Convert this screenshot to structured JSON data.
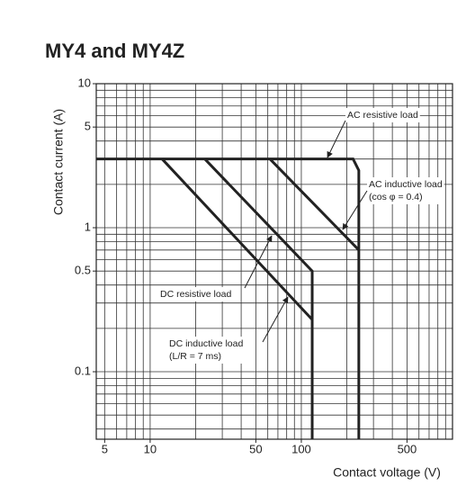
{
  "chart_data": {
    "type": "line",
    "title": "MY4 and MY4Z",
    "x_label": "Contact voltage (V)",
    "y_label": "Contact current (A)",
    "log_x": true,
    "log_y": true,
    "xlim": [
      4.4,
      1000
    ],
    "ylim": [
      0.034,
      10
    ],
    "xticks": [
      5,
      10,
      50,
      100,
      500
    ],
    "yticks": [
      10,
      5,
      1,
      0.5,
      0.1
    ],
    "xgrid": [
      5,
      6,
      7,
      8,
      9,
      10,
      20,
      30,
      40,
      50,
      60,
      70,
      80,
      90,
      100,
      200,
      300,
      400,
      500,
      600,
      700,
      800,
      900
    ],
    "ygrid": [
      0.04,
      0.05,
      0.06,
      0.07,
      0.08,
      0.09,
      0.1,
      0.2,
      0.3,
      0.4,
      0.5,
      0.6,
      0.7,
      0.8,
      0.9,
      1,
      2,
      3,
      4,
      5,
      6,
      7,
      8,
      9,
      10
    ],
    "series": [
      {
        "name": "AC resistive load",
        "color": "#222222",
        "x": [
          4.4,
          220,
          240,
          240
        ],
        "values": [
          3,
          3,
          2.5,
          0.034
        ]
      },
      {
        "name": "AC inductive load (cos φ = 0.4)",
        "color": "#222222",
        "x": [
          62,
          240
        ],
        "values": [
          3,
          0.7
        ]
      },
      {
        "name": "DC resistive load",
        "color": "#222222",
        "x": [
          23,
          118,
          118
        ],
        "values": [
          3,
          0.5,
          0.034
        ]
      },
      {
        "name": "DC inductive load (L/R = 7 ms)",
        "color": "#222222",
        "x": [
          12,
          118
        ],
        "values": [
          3,
          0.23
        ]
      }
    ],
    "annotations": [
      {
        "lines": [
          "AC resistive load"
        ]
      },
      {
        "lines": [
          "AC inductive load",
          "(cos φ = 0.4)"
        ]
      },
      {
        "lines": [
          "DC resistive load"
        ]
      },
      {
        "lines": [
          "DC inductive load",
          "(L/R = 7 ms)"
        ]
      }
    ]
  }
}
